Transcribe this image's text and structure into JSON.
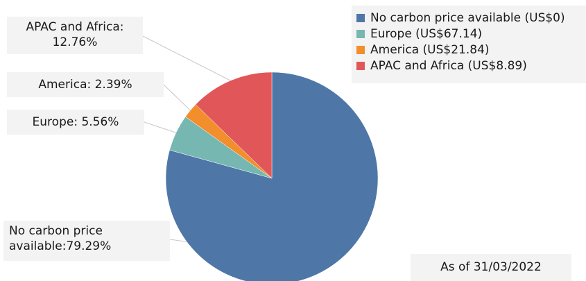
{
  "chart_data": {
    "type": "pie",
    "slices": [
      {
        "name": "No carbon price available (US$0)",
        "value": 79.29,
        "color": "#4e77a7"
      },
      {
        "name": "Europe (US$67.14)",
        "value": 5.56,
        "color": "#76b7b2"
      },
      {
        "name": "America (US$21.84)",
        "value": 2.39,
        "color": "#f28e2b"
      },
      {
        "name": "APAC and Africa (US$8.89)",
        "value": 12.76,
        "color": "#e15759"
      }
    ],
    "data_labels": {
      "no_carbon": "No carbon price available:79.29%",
      "europe": "Europe: 5.56%",
      "america": "America: 2.39%",
      "apac": "APAC and Africa: 12.76%"
    },
    "legend_placement": "top-right",
    "annotation": "As of 31/03/2022"
  }
}
